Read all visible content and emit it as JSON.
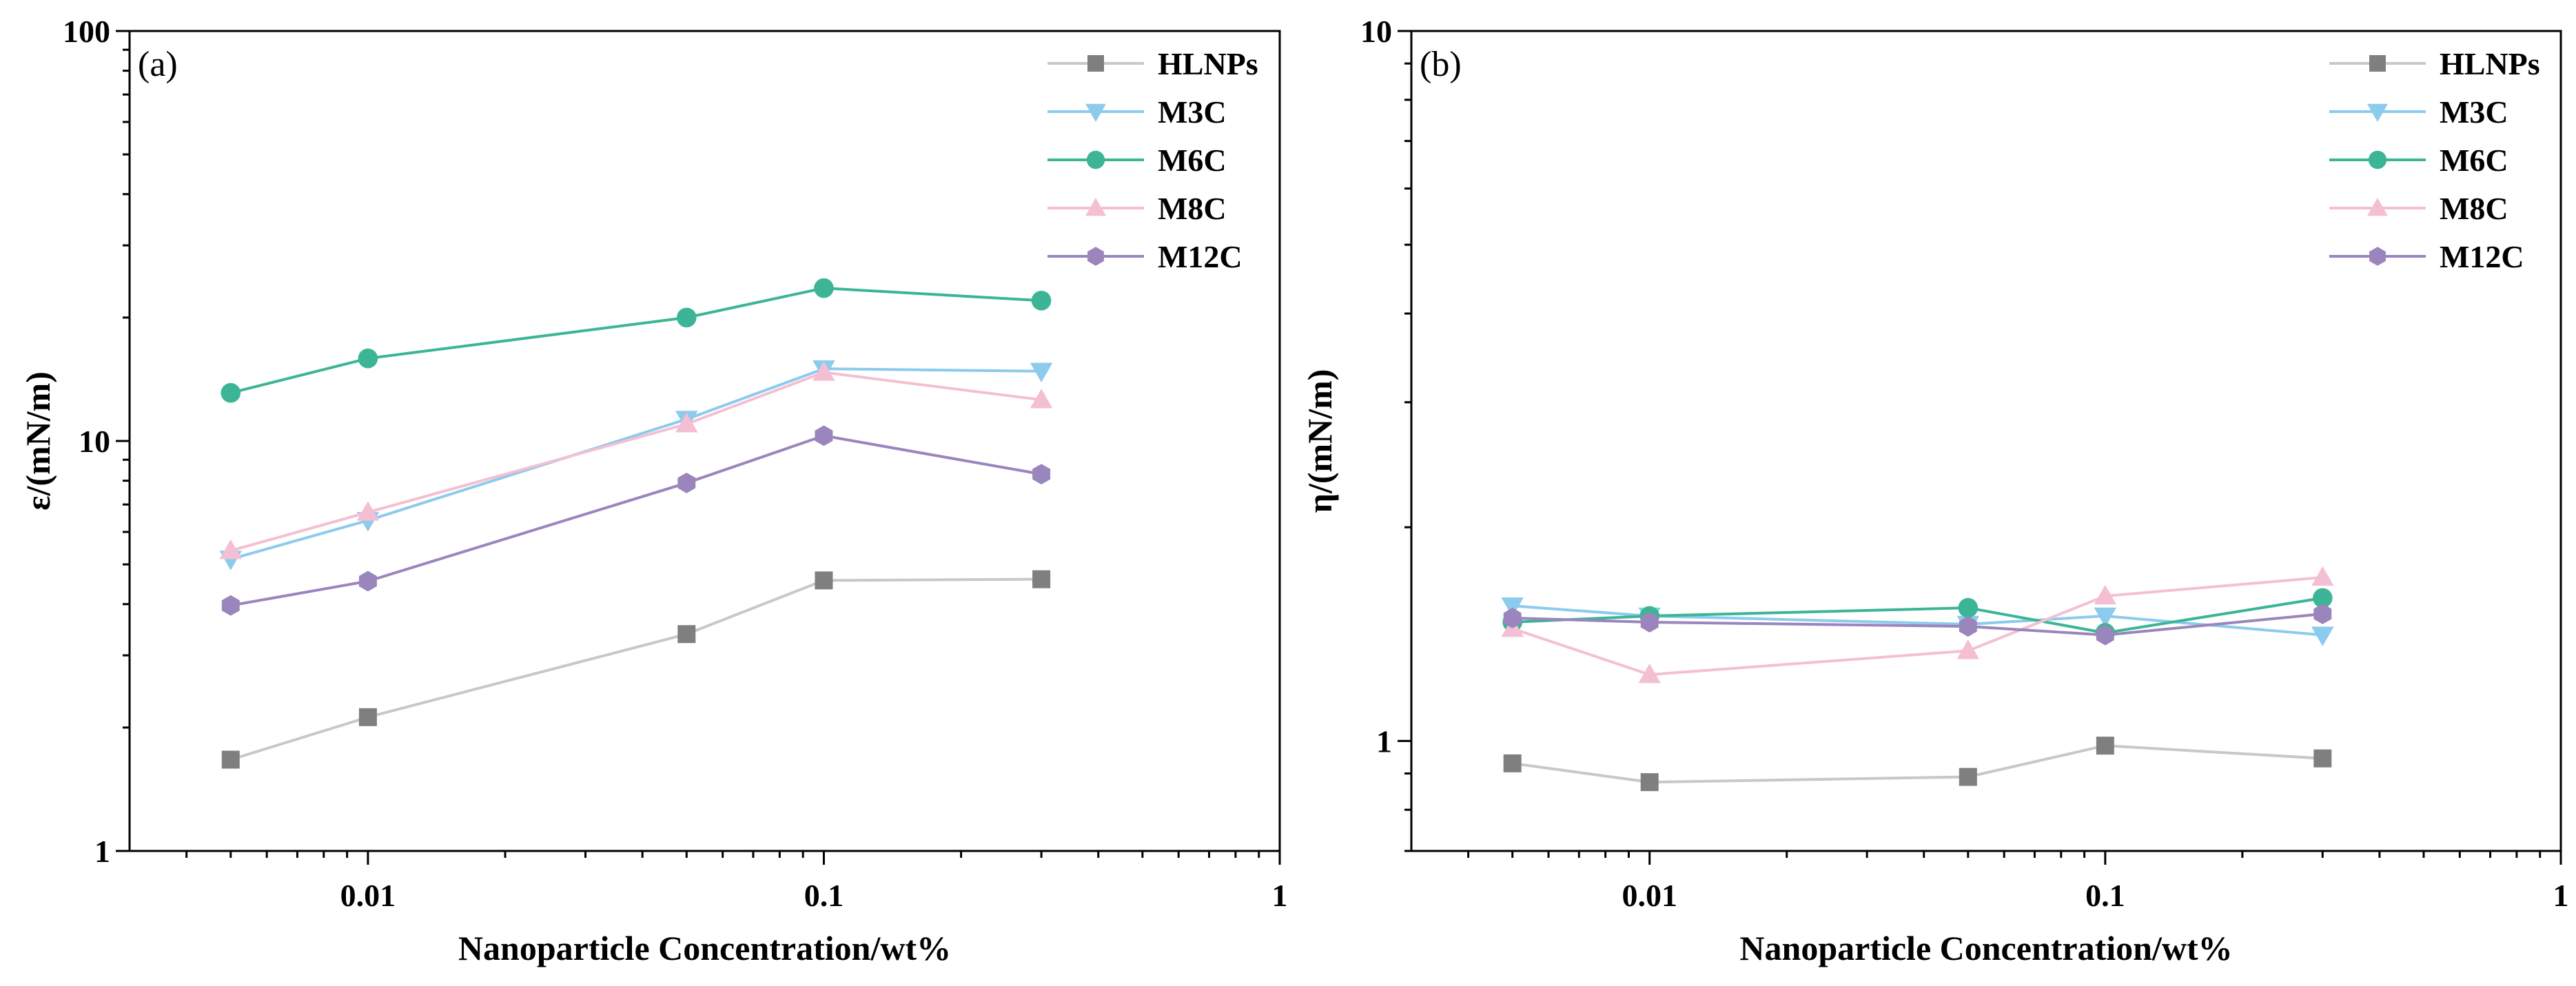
{
  "chart_data": [
    {
      "type": "line",
      "panel_label": "(a)",
      "xlabel": "Nanoparticle Concentration/wt%",
      "ylabel": "ε/(mN/m)",
      "xscale": "log",
      "yscale": "log",
      "xlim": [
        0.003,
        1
      ],
      "ylim": [
        1,
        100
      ],
      "x_ticks": [
        {
          "value": 0.01,
          "label": "0.01"
        },
        {
          "value": 0.1,
          "label": "0.1"
        },
        {
          "value": 1,
          "label": "1"
        }
      ],
      "y_ticks": [
        {
          "value": 1,
          "label": "1"
        },
        {
          "value": 10,
          "label": "10"
        },
        {
          "value": 100,
          "label": "100"
        }
      ],
      "legend_position": "top-right",
      "x": [
        0.005,
        0.01,
        0.05,
        0.1,
        0.3
      ],
      "series": [
        {
          "name": "HLNPs",
          "color": "#7f7f7f",
          "line_color": "#c8c8c8",
          "marker": "square",
          "values": [
            1.67,
            2.12,
            3.38,
            4.57,
            4.6
          ]
        },
        {
          "name": "M3C",
          "color": "#8ccbed",
          "line_color": "#8ccbed",
          "marker": "triangle-down",
          "values": [
            5.15,
            6.4,
            11.3,
            15.0,
            14.8
          ]
        },
        {
          "name": "M6C",
          "color": "#3cb596",
          "line_color": "#3cb596",
          "marker": "circle",
          "values": [
            13.1,
            15.9,
            20.0,
            23.6,
            22.0
          ]
        },
        {
          "name": "M8C",
          "color": "#f5bfd3",
          "line_color": "#f5bfd3",
          "marker": "triangle-up",
          "values": [
            5.4,
            6.7,
            11.0,
            14.7,
            12.6
          ]
        },
        {
          "name": "M12C",
          "color": "#9b85bd",
          "line_color": "#9b85bd",
          "marker": "hexagon",
          "values": [
            3.97,
            4.55,
            7.9,
            10.3,
            8.3
          ]
        }
      ]
    },
    {
      "type": "line",
      "panel_label": "(b)",
      "xlabel": "Nanoparticle Concentration/wt%",
      "ylabel": "η/(mN/m)",
      "xscale": "log",
      "yscale": "log",
      "xlim": [
        0.003,
        1
      ],
      "ylim": [
        0.7,
        10
      ],
      "x_ticks": [
        {
          "value": 0.01,
          "label": "0.01"
        },
        {
          "value": 0.1,
          "label": "0.1"
        },
        {
          "value": 1,
          "label": "1"
        }
      ],
      "y_ticks": [
        {
          "value": 1,
          "label": "1"
        },
        {
          "value": 10,
          "label": "10"
        }
      ],
      "legend_position": "top-right",
      "x": [
        0.005,
        0.01,
        0.05,
        0.1,
        0.3
      ],
      "series": [
        {
          "name": "HLNPs",
          "color": "#7f7f7f",
          "line_color": "#c8c8c8",
          "marker": "square",
          "values": [
            0.93,
            0.875,
            0.89,
            0.985,
            0.945
          ]
        },
        {
          "name": "M3C",
          "color": "#8ccbed",
          "line_color": "#8ccbed",
          "marker": "triangle-down",
          "values": [
            1.55,
            1.5,
            1.46,
            1.5,
            1.41
          ]
        },
        {
          "name": "M6C",
          "color": "#3cb596",
          "line_color": "#3cb596",
          "marker": "circle",
          "values": [
            1.47,
            1.5,
            1.54,
            1.42,
            1.59
          ]
        },
        {
          "name": "M8C",
          "color": "#f5bfd3",
          "line_color": "#f5bfd3",
          "marker": "triangle-up",
          "values": [
            1.44,
            1.24,
            1.34,
            1.6,
            1.7
          ]
        },
        {
          "name": "M12C",
          "color": "#9b85bd",
          "line_color": "#9b85bd",
          "marker": "hexagon",
          "values": [
            1.49,
            1.47,
            1.45,
            1.41,
            1.51
          ]
        }
      ]
    }
  ]
}
